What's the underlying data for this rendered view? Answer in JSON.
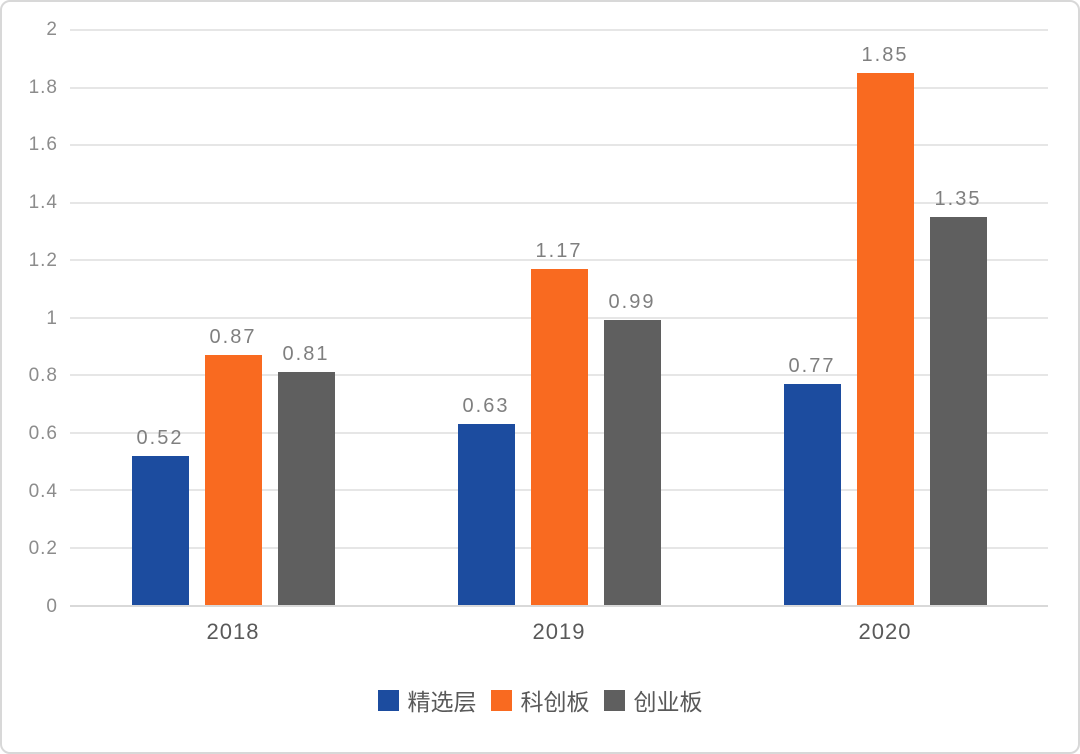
{
  "chart_data": {
    "type": "bar",
    "title": "",
    "xlabel": "",
    "ylabel": "",
    "categories": [
      "2018",
      "2019",
      "2020"
    ],
    "series": [
      {
        "name": "精选层",
        "color": "#1c4c9f",
        "values": [
          0.52,
          0.63,
          0.77
        ]
      },
      {
        "name": "科创板",
        "color": "#f96a20",
        "values": [
          0.87,
          1.17,
          1.85
        ]
      },
      {
        "name": "创业板",
        "color": "#5f5f5f",
        "values": [
          0.81,
          0.99,
          1.35
        ]
      }
    ],
    "ylim": [
      0,
      2
    ],
    "ytick_step": 0.2,
    "yticks_top_to_bottom": [
      "2",
      "1.8",
      "1.6",
      "1.4",
      "1.2",
      "1",
      "0.8",
      "0.6",
      "0.4",
      "0.2",
      "0"
    ],
    "grid": true,
    "legend_position": "bottom",
    "value_labels_shown": true
  }
}
